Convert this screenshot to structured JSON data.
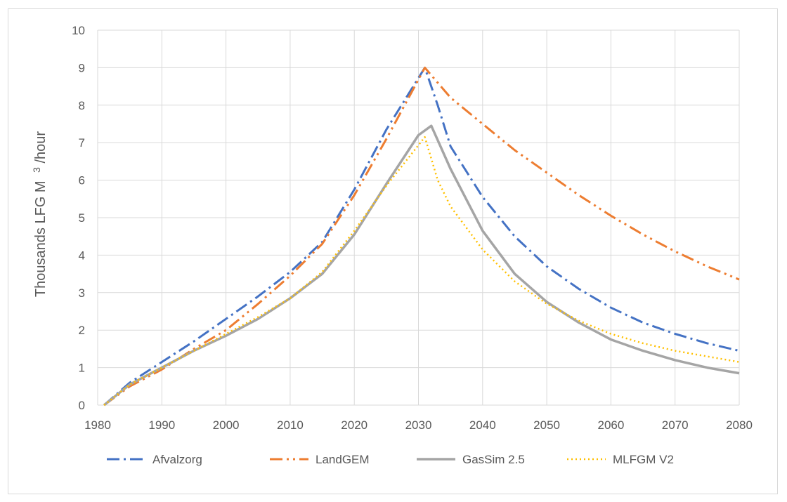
{
  "chart_data": {
    "type": "line",
    "title": "",
    "xlabel": "",
    "ylabel": "Thousands LFG M",
    "ylabel_superscript": "3",
    "ylabel_suffix": "/hour",
    "xlim": [
      1980,
      2080
    ],
    "ylim": [
      0,
      10
    ],
    "x_ticks": [
      "1980",
      "1990",
      "2000",
      "2010",
      "2020",
      "2030",
      "2040",
      "2050",
      "2060",
      "2070",
      "2080"
    ],
    "y_ticks": [
      "0",
      "1",
      "2",
      "3",
      "4",
      "5",
      "6",
      "7",
      "8",
      "9",
      "10"
    ],
    "grid": true,
    "legend_position": "bottom",
    "series": [
      {
        "name": "Afvalzorg",
        "color": "#4472C4",
        "style": "dash-dot",
        "points": [
          [
            1981,
            0
          ],
          [
            1985,
            0.6
          ],
          [
            1990,
            1.15
          ],
          [
            1995,
            1.7
          ],
          [
            2000,
            2.3
          ],
          [
            2005,
            2.9
          ],
          [
            2010,
            3.55
          ],
          [
            2015,
            4.35
          ],
          [
            2020,
            5.75
          ],
          [
            2025,
            7.35
          ],
          [
            2031,
            9.0
          ],
          [
            2033,
            8.0
          ],
          [
            2035,
            6.9
          ],
          [
            2040,
            5.55
          ],
          [
            2045,
            4.5
          ],
          [
            2050,
            3.7
          ],
          [
            2055,
            3.1
          ],
          [
            2060,
            2.6
          ],
          [
            2065,
            2.2
          ],
          [
            2070,
            1.9
          ],
          [
            2075,
            1.65
          ],
          [
            2080,
            1.45
          ]
        ]
      },
      {
        "name": "LandGEM",
        "color": "#ED7D31",
        "style": "dash-dot-dot",
        "points": [
          [
            1981,
            0
          ],
          [
            1985,
            0.5
          ],
          [
            1990,
            0.95
          ],
          [
            1995,
            1.5
          ],
          [
            2000,
            2.0
          ],
          [
            2005,
            2.7
          ],
          [
            2010,
            3.45
          ],
          [
            2015,
            4.3
          ],
          [
            2020,
            5.6
          ],
          [
            2025,
            7.1
          ],
          [
            2031,
            9.0
          ],
          [
            2035,
            8.2
          ],
          [
            2040,
            7.5
          ],
          [
            2045,
            6.8
          ],
          [
            2050,
            6.2
          ],
          [
            2055,
            5.6
          ],
          [
            2060,
            5.05
          ],
          [
            2065,
            4.55
          ],
          [
            2070,
            4.1
          ],
          [
            2075,
            3.7
          ],
          [
            2080,
            3.35
          ]
        ]
      },
      {
        "name": "GasSim 2.5",
        "color": "#A5A5A5",
        "style": "solid",
        "points": [
          [
            1981,
            0
          ],
          [
            1985,
            0.55
          ],
          [
            1990,
            1.0
          ],
          [
            1995,
            1.45
          ],
          [
            2000,
            1.85
          ],
          [
            2005,
            2.3
          ],
          [
            2010,
            2.85
          ],
          [
            2015,
            3.5
          ],
          [
            2020,
            4.55
          ],
          [
            2025,
            5.9
          ],
          [
            2030,
            7.2
          ],
          [
            2032,
            7.45
          ],
          [
            2035,
            6.3
          ],
          [
            2040,
            4.65
          ],
          [
            2045,
            3.5
          ],
          [
            2050,
            2.75
          ],
          [
            2055,
            2.2
          ],
          [
            2060,
            1.75
          ],
          [
            2065,
            1.45
          ],
          [
            2070,
            1.2
          ],
          [
            2075,
            1.0
          ],
          [
            2080,
            0.85
          ]
        ]
      },
      {
        "name": "MLFGM V2",
        "color": "#FFC000",
        "style": "dotted",
        "points": [
          [
            1981,
            0
          ],
          [
            1985,
            0.55
          ],
          [
            1990,
            1.0
          ],
          [
            1995,
            1.45
          ],
          [
            2000,
            1.9
          ],
          [
            2005,
            2.35
          ],
          [
            2010,
            2.85
          ],
          [
            2015,
            3.55
          ],
          [
            2020,
            4.65
          ],
          [
            2025,
            5.85
          ],
          [
            2031,
            7.15
          ],
          [
            2033,
            6.0
          ],
          [
            2035,
            5.3
          ],
          [
            2040,
            4.15
          ],
          [
            2045,
            3.3
          ],
          [
            2050,
            2.7
          ],
          [
            2055,
            2.25
          ],
          [
            2060,
            1.9
          ],
          [
            2065,
            1.65
          ],
          [
            2070,
            1.45
          ],
          [
            2075,
            1.3
          ],
          [
            2080,
            1.15
          ]
        ]
      }
    ]
  }
}
